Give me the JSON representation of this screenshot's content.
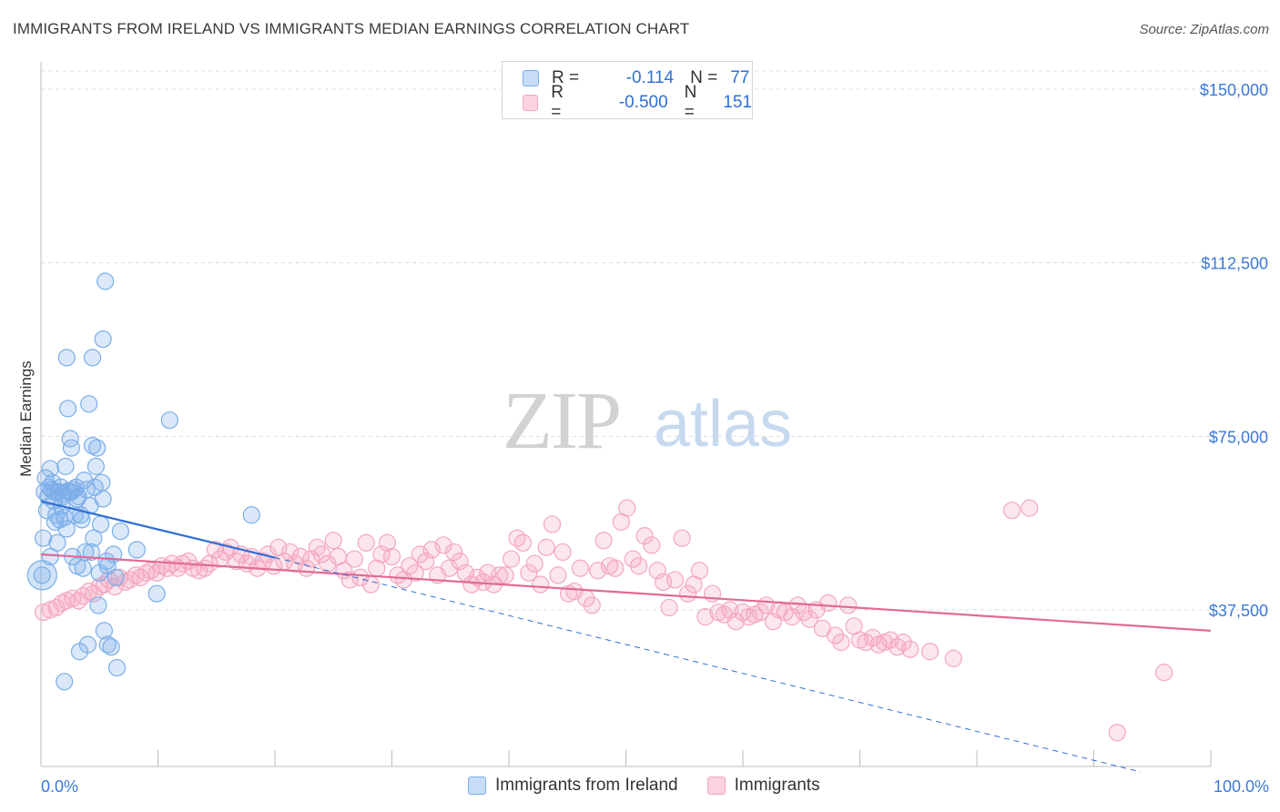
{
  "title": "IMMIGRANTS FROM IRELAND VS IMMIGRANTS MEDIAN EARNINGS CORRELATION CHART",
  "source": "Source: ZipAtlas.com",
  "watermark": {
    "zip": "ZIP",
    "atlas": "atlas"
  },
  "legend": {
    "rows": [
      {
        "r_label": "R =",
        "r_value": "-0.114",
        "n_label": "N =",
        "n_value": "77",
        "color": "#7aaee8"
      },
      {
        "r_label": "R =",
        "r_value": "-0.500",
        "n_label": "N =",
        "n_value": "151",
        "color": "#f4a7bf"
      }
    ]
  },
  "bottom_legend": [
    {
      "label": "Immigrants from Ireland",
      "color": "#7aaee8"
    },
    {
      "label": "Immigrants",
      "color": "#f4a7bf"
    }
  ],
  "chart_data": {
    "type": "scatter",
    "ylabel": "Median Earnings",
    "xlim": [
      0,
      100
    ],
    "ylim": [
      0,
      150000
    ],
    "x_tick_labels": [
      "0.0%",
      "100.0%"
    ],
    "y_ticks": [
      {
        "value": 150000,
        "label": "$150,000"
      },
      {
        "value": 112500,
        "label": "$112,500"
      },
      {
        "value": 75000,
        "label": "$75,000"
      },
      {
        "value": 37500,
        "label": "$37,500"
      }
    ],
    "grid": true,
    "series": [
      {
        "name": "Immigrants from Ireland",
        "color": "#7aaee8",
        "line_color": "#2f6fd6",
        "trend": {
          "x": [
            0,
            20
          ],
          "y": [
            61000,
            48800
          ]
        },
        "trend_extension": {
          "x": [
            20,
            94
          ],
          "y": [
            48800,
            2500
          ]
        },
        "points": [
          [
            0.1,
            45000
          ],
          [
            0.2,
            53000
          ],
          [
            0.3,
            63000
          ],
          [
            0.4,
            66000
          ],
          [
            0.5,
            59000
          ],
          [
            0.6,
            62000
          ],
          [
            0.7,
            64000
          ],
          [
            0.8,
            68000
          ],
          [
            0.9,
            63500
          ],
          [
            1.0,
            65000
          ],
          [
            1.1,
            61000
          ],
          [
            1.2,
            63000
          ],
          [
            1.3,
            58000
          ],
          [
            1.4,
            52000
          ],
          [
            1.5,
            63000
          ],
          [
            1.6,
            57000
          ],
          [
            1.7,
            64000
          ],
          [
            1.8,
            60000
          ],
          [
            1.9,
            62000
          ],
          [
            2.0,
            57500
          ],
          [
            2.1,
            68500
          ],
          [
            2.2,
            55000
          ],
          [
            2.3,
            81000
          ],
          [
            2.4,
            63000
          ],
          [
            2.5,
            74500
          ],
          [
            2.6,
            72500
          ],
          [
            2.7,
            49000
          ],
          [
            2.8,
            63500
          ],
          [
            2.9,
            58000
          ],
          [
            3.0,
            64000
          ],
          [
            3.1,
            47000
          ],
          [
            3.2,
            62000
          ],
          [
            3.3,
            28500
          ],
          [
            3.4,
            58000
          ],
          [
            3.5,
            57000
          ],
          [
            3.6,
            46500
          ],
          [
            3.7,
            65500
          ],
          [
            3.8,
            50000
          ],
          [
            3.9,
            63500
          ],
          [
            4.0,
            30000
          ],
          [
            4.1,
            82000
          ],
          [
            4.2,
            60000
          ],
          [
            4.3,
            50000
          ],
          [
            4.4,
            92000
          ],
          [
            4.5,
            53000
          ],
          [
            4.6,
            64000
          ],
          [
            4.7,
            68500
          ],
          [
            4.8,
            72500
          ],
          [
            4.9,
            38500
          ],
          [
            5.0,
            45500
          ],
          [
            5.1,
            56000
          ],
          [
            5.2,
            65000
          ],
          [
            5.3,
            61500
          ],
          [
            5.4,
            33000
          ],
          [
            5.5,
            108500
          ],
          [
            5.6,
            48000
          ],
          [
            5.7,
            47000
          ],
          [
            4.4,
            73000
          ],
          [
            3.1,
            61500
          ],
          [
            2.2,
            92000
          ],
          [
            2.6,
            63000
          ],
          [
            0.8,
            49000
          ],
          [
            1.2,
            56500
          ],
          [
            1.9,
            62500
          ],
          [
            2.3,
            63200
          ],
          [
            6.0,
            29500
          ],
          [
            6.5,
            25000
          ],
          [
            6.2,
            49500
          ],
          [
            6.4,
            44500
          ],
          [
            5.3,
            96000
          ],
          [
            5.7,
            30000
          ],
          [
            6.8,
            54500
          ],
          [
            8.2,
            50500
          ],
          [
            9.9,
            41000
          ],
          [
            11.0,
            78500
          ],
          [
            18.0,
            58000
          ],
          [
            2.0,
            22000
          ]
        ]
      },
      {
        "name": "Immigrants",
        "color": "#f4a7bf",
        "line_color": "#e06a97",
        "trend": {
          "x": [
            0,
            100
          ],
          "y": [
            49500,
            33000
          ]
        },
        "points": [
          [
            0.2,
            37000
          ],
          [
            0.8,
            37500
          ],
          [
            1.3,
            38000
          ],
          [
            1.8,
            39000
          ],
          [
            2.2,
            39500
          ],
          [
            2.7,
            40000
          ],
          [
            3.2,
            39500
          ],
          [
            3.6,
            40500
          ],
          [
            4.1,
            41500
          ],
          [
            4.5,
            41000
          ],
          [
            5.0,
            42500
          ],
          [
            5.4,
            43000
          ],
          [
            5.8,
            44000
          ],
          [
            6.3,
            42500
          ],
          [
            6.7,
            44500
          ],
          [
            7.2,
            43500
          ],
          [
            7.6,
            44000
          ],
          [
            8.1,
            45000
          ],
          [
            8.5,
            44500
          ],
          [
            9.0,
            45500
          ],
          [
            9.4,
            46000
          ],
          [
            9.9,
            45500
          ],
          [
            10.3,
            47000
          ],
          [
            10.8,
            46500
          ],
          [
            11.2,
            47500
          ],
          [
            11.7,
            46500
          ],
          [
            12.1,
            47500
          ],
          [
            12.6,
            48000
          ],
          [
            13.0,
            46500
          ],
          [
            13.5,
            46000
          ],
          [
            14.0,
            46500
          ],
          [
            14.4,
            47500
          ],
          [
            14.9,
            50500
          ],
          [
            15.3,
            48500
          ],
          [
            15.8,
            50000
          ],
          [
            16.2,
            51000
          ],
          [
            16.7,
            48000
          ],
          [
            17.1,
            49500
          ],
          [
            17.6,
            47500
          ],
          [
            18.0,
            49000
          ],
          [
            18.5,
            46500
          ],
          [
            19.0,
            48000
          ],
          [
            19.4,
            49500
          ],
          [
            19.9,
            47000
          ],
          [
            20.3,
            51000
          ],
          [
            20.8,
            48000
          ],
          [
            21.3,
            50000
          ],
          [
            21.7,
            47500
          ],
          [
            22.2,
            49000
          ],
          [
            22.7,
            46500
          ],
          [
            23.1,
            48500
          ],
          [
            23.6,
            51000
          ],
          [
            24.0,
            49500
          ],
          [
            24.5,
            47500
          ],
          [
            25.0,
            52500
          ],
          [
            25.4,
            49000
          ],
          [
            25.9,
            46000
          ],
          [
            26.4,
            44000
          ],
          [
            26.8,
            48500
          ],
          [
            27.3,
            44500
          ],
          [
            27.8,
            52000
          ],
          [
            28.2,
            43000
          ],
          [
            28.7,
            46500
          ],
          [
            29.1,
            49500
          ],
          [
            29.6,
            52000
          ],
          [
            30.0,
            49000
          ],
          [
            30.5,
            45000
          ],
          [
            31.0,
            44000
          ],
          [
            31.5,
            47000
          ],
          [
            32.0,
            45500
          ],
          [
            32.4,
            49500
          ],
          [
            32.9,
            48000
          ],
          [
            33.4,
            50500
          ],
          [
            33.9,
            45000
          ],
          [
            34.4,
            51500
          ],
          [
            34.9,
            46500
          ],
          [
            35.3,
            50000
          ],
          [
            35.8,
            48000
          ],
          [
            36.3,
            45500
          ],
          [
            36.8,
            43000
          ],
          [
            37.3,
            44500
          ],
          [
            37.8,
            43500
          ],
          [
            38.2,
            45500
          ],
          [
            38.7,
            43000
          ],
          [
            39.2,
            45000
          ],
          [
            39.7,
            45000
          ],
          [
            40.2,
            48500
          ],
          [
            40.7,
            53000
          ],
          [
            41.2,
            52000
          ],
          [
            41.7,
            45500
          ],
          [
            42.2,
            47500
          ],
          [
            42.7,
            43000
          ],
          [
            43.2,
            51000
          ],
          [
            43.7,
            56000
          ],
          [
            44.2,
            45000
          ],
          [
            44.6,
            50000
          ],
          [
            45.1,
            41000
          ],
          [
            45.6,
            41500
          ],
          [
            46.1,
            46500
          ],
          [
            46.6,
            40000
          ],
          [
            47.1,
            38500
          ],
          [
            47.6,
            46000
          ],
          [
            48.1,
            52500
          ],
          [
            48.6,
            47000
          ],
          [
            49.1,
            46500
          ],
          [
            49.6,
            56500
          ],
          [
            50.1,
            59500
          ],
          [
            50.6,
            48500
          ],
          [
            51.1,
            47000
          ],
          [
            51.6,
            53500
          ],
          [
            52.2,
            51500
          ],
          [
            52.7,
            46000
          ],
          [
            53.2,
            43500
          ],
          [
            53.7,
            38000
          ],
          [
            54.2,
            44000
          ],
          [
            54.8,
            53000
          ],
          [
            55.3,
            41000
          ],
          [
            55.8,
            43000
          ],
          [
            56.3,
            46000
          ],
          [
            56.8,
            36000
          ],
          [
            57.4,
            41000
          ],
          [
            57.9,
            37000
          ],
          [
            58.4,
            36500
          ],
          [
            58.9,
            37500
          ],
          [
            59.4,
            35000
          ],
          [
            60.0,
            37000
          ],
          [
            60.5,
            36000
          ],
          [
            61.0,
            36500
          ],
          [
            61.5,
            37000
          ],
          [
            62.0,
            38500
          ],
          [
            62.6,
            35000
          ],
          [
            63.1,
            37500
          ],
          [
            63.6,
            37000
          ],
          [
            64.2,
            36000
          ],
          [
            64.7,
            38500
          ],
          [
            65.2,
            37000
          ],
          [
            65.7,
            35500
          ],
          [
            66.3,
            37500
          ],
          [
            66.8,
            33500
          ],
          [
            67.3,
            39000
          ],
          [
            67.9,
            32000
          ],
          [
            68.4,
            30500
          ],
          [
            69.0,
            38500
          ],
          [
            69.5,
            34000
          ],
          [
            70.0,
            31000
          ],
          [
            70.5,
            30500
          ],
          [
            71.1,
            31500
          ],
          [
            71.6,
            30000
          ],
          [
            72.1,
            30500
          ],
          [
            72.6,
            31000
          ],
          [
            73.2,
            29500
          ],
          [
            73.7,
            30500
          ],
          [
            74.3,
            29000
          ],
          [
            76.0,
            28500
          ],
          [
            78.0,
            27000
          ],
          [
            83.0,
            59000
          ],
          [
            84.5,
            59500
          ],
          [
            92.0,
            11000
          ],
          [
            96.0,
            24000
          ]
        ]
      }
    ]
  }
}
